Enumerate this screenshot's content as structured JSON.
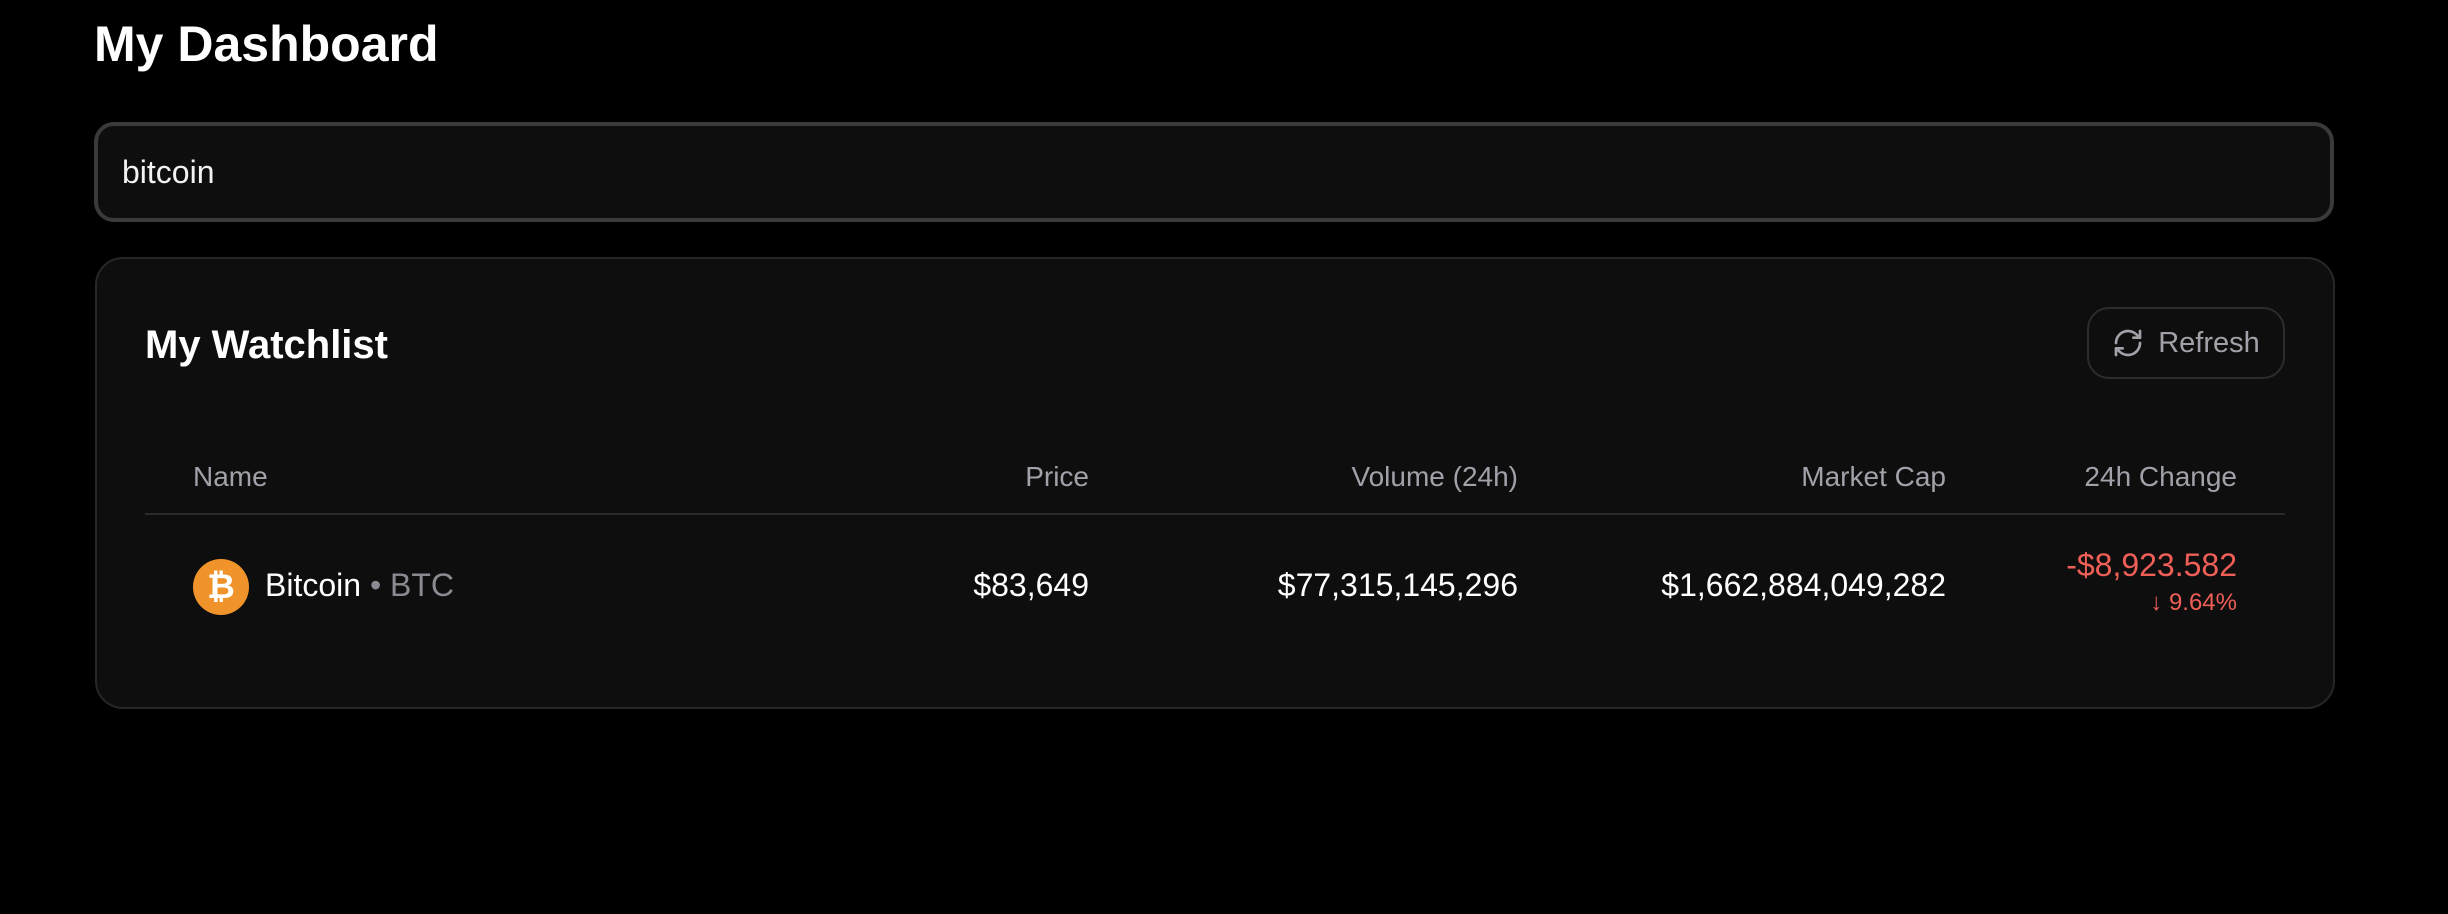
{
  "page": {
    "title": "My Dashboard"
  },
  "search": {
    "value": "bitcoin",
    "placeholder": ""
  },
  "watchlist": {
    "title": "My Watchlist",
    "refresh_label": "Refresh",
    "refresh_icon": "refresh-icon",
    "columns": [
      "Name",
      "Price",
      "Volume (24h)",
      "Market Cap",
      "24h Change"
    ],
    "rows": [
      {
        "icon": "bitcoin-icon",
        "icon_color": "#f0932b",
        "name": "Bitcoin",
        "separator": "•",
        "symbol": "BTC",
        "price": "$83,649",
        "volume": "$77,315,145,296",
        "market_cap": "$1,662,884,049,282",
        "change_value": "-$8,923.582",
        "change_direction_icon": "arrow-down-icon",
        "change_percent": "9.64%"
      }
    ]
  },
  "colors": {
    "background": "#000000",
    "card": "#0e0e0e",
    "negative": "#ef5f57",
    "muted": "#a1a1aa"
  }
}
